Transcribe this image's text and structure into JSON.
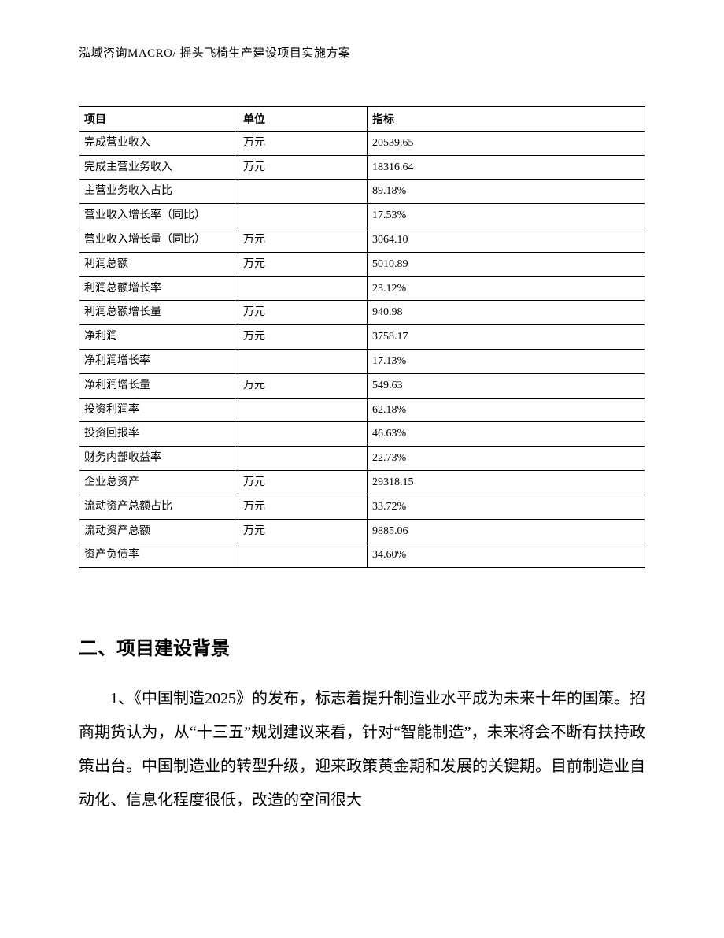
{
  "header": "泓域咨询MACRO/ 摇头飞椅生产建设项目实施方案",
  "table": {
    "columns": [
      "项目",
      "单位",
      "指标"
    ],
    "rows": [
      {
        "item": "完成营业收入",
        "unit": "万元",
        "metric": "20539.65"
      },
      {
        "item": "完成主营业务收入",
        "unit": "万元",
        "metric": "18316.64"
      },
      {
        "item": "主营业务收入占比",
        "unit": "",
        "metric": "89.18%"
      },
      {
        "item": "营业收入增长率（同比）",
        "unit": "",
        "metric": "17.53%"
      },
      {
        "item": "营业收入增长量（同比）",
        "unit": "万元",
        "metric": "3064.10"
      },
      {
        "item": "利润总额",
        "unit": "万元",
        "metric": "5010.89"
      },
      {
        "item": "利润总额增长率",
        "unit": "",
        "metric": "23.12%"
      },
      {
        "item": "利润总额增长量",
        "unit": "万元",
        "metric": "940.98"
      },
      {
        "item": "净利润",
        "unit": "万元",
        "metric": "3758.17"
      },
      {
        "item": "净利润增长率",
        "unit": "",
        "metric": "17.13%"
      },
      {
        "item": "净利润增长量",
        "unit": "万元",
        "metric": "549.63"
      },
      {
        "item": "投资利润率",
        "unit": "",
        "metric": "62.18%"
      },
      {
        "item": "投资回报率",
        "unit": "",
        "metric": "46.63%"
      },
      {
        "item": "财务内部收益率",
        "unit": "",
        "metric": "22.73%"
      },
      {
        "item": "企业总资产",
        "unit": "万元",
        "metric": "29318.15"
      },
      {
        "item": "流动资产总额占比",
        "unit": "万元",
        "metric": "33.72%"
      },
      {
        "item": "流动资产总额",
        "unit": "万元",
        "metric": "9885.06"
      },
      {
        "item": "资产负债率",
        "unit": "",
        "metric": "34.60%"
      }
    ]
  },
  "section_title": "二、项目建设背景",
  "body_paragraph": "1、《中国制造2025》的发布，标志着提升制造业水平成为未来十年的国策。招商期货认为，从“十三五”规划建议来看，针对“智能制造”，未来将会不断有扶持政策出台。中国制造业的转型升级，迎来政策黄金期和发展的关键期。目前制造业自动化、信息化程度很低，改造的空间很大"
}
